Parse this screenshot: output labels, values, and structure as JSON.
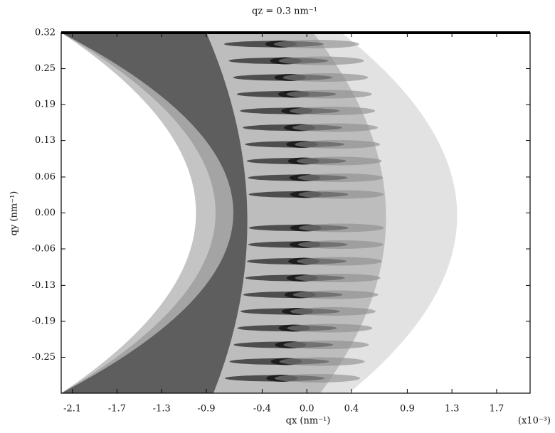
{
  "chart_data": {
    "type": "contour",
    "title": "qz = 0.3 nm⁻¹",
    "x_label": "qx (nm⁻¹)",
    "x_multiplier": "(x10⁻³)",
    "y_label": "qy (nm⁻¹)",
    "xlim": [
      -2.2,
      2.0
    ],
    "xticks": [
      -2.1,
      -1.7,
      -1.3,
      -0.9,
      -0.4,
      {
        "value": 0,
        "label": "0.0"
      },
      0.4,
      0.9,
      1.3,
      1.7
    ],
    "ylim": [
      -0.316,
      0.316
    ],
    "yticks": [
      {
        "value": 0.316,
        "label": "0.32"
      },
      {
        "value": 0.253,
        "label": "0.25"
      },
      0.19,
      {
        "value": 0.127,
        "label": "0.13"
      },
      {
        "value": 0.063,
        "label": "0.06"
      },
      {
        "value": 0,
        "label": "0.00"
      },
      {
        "value": -0.063,
        "label": "-0.06"
      },
      {
        "value": -0.127,
        "label": "-0.13"
      },
      -0.19,
      {
        "value": -0.253,
        "label": "-0.25"
      }
    ]
  }
}
